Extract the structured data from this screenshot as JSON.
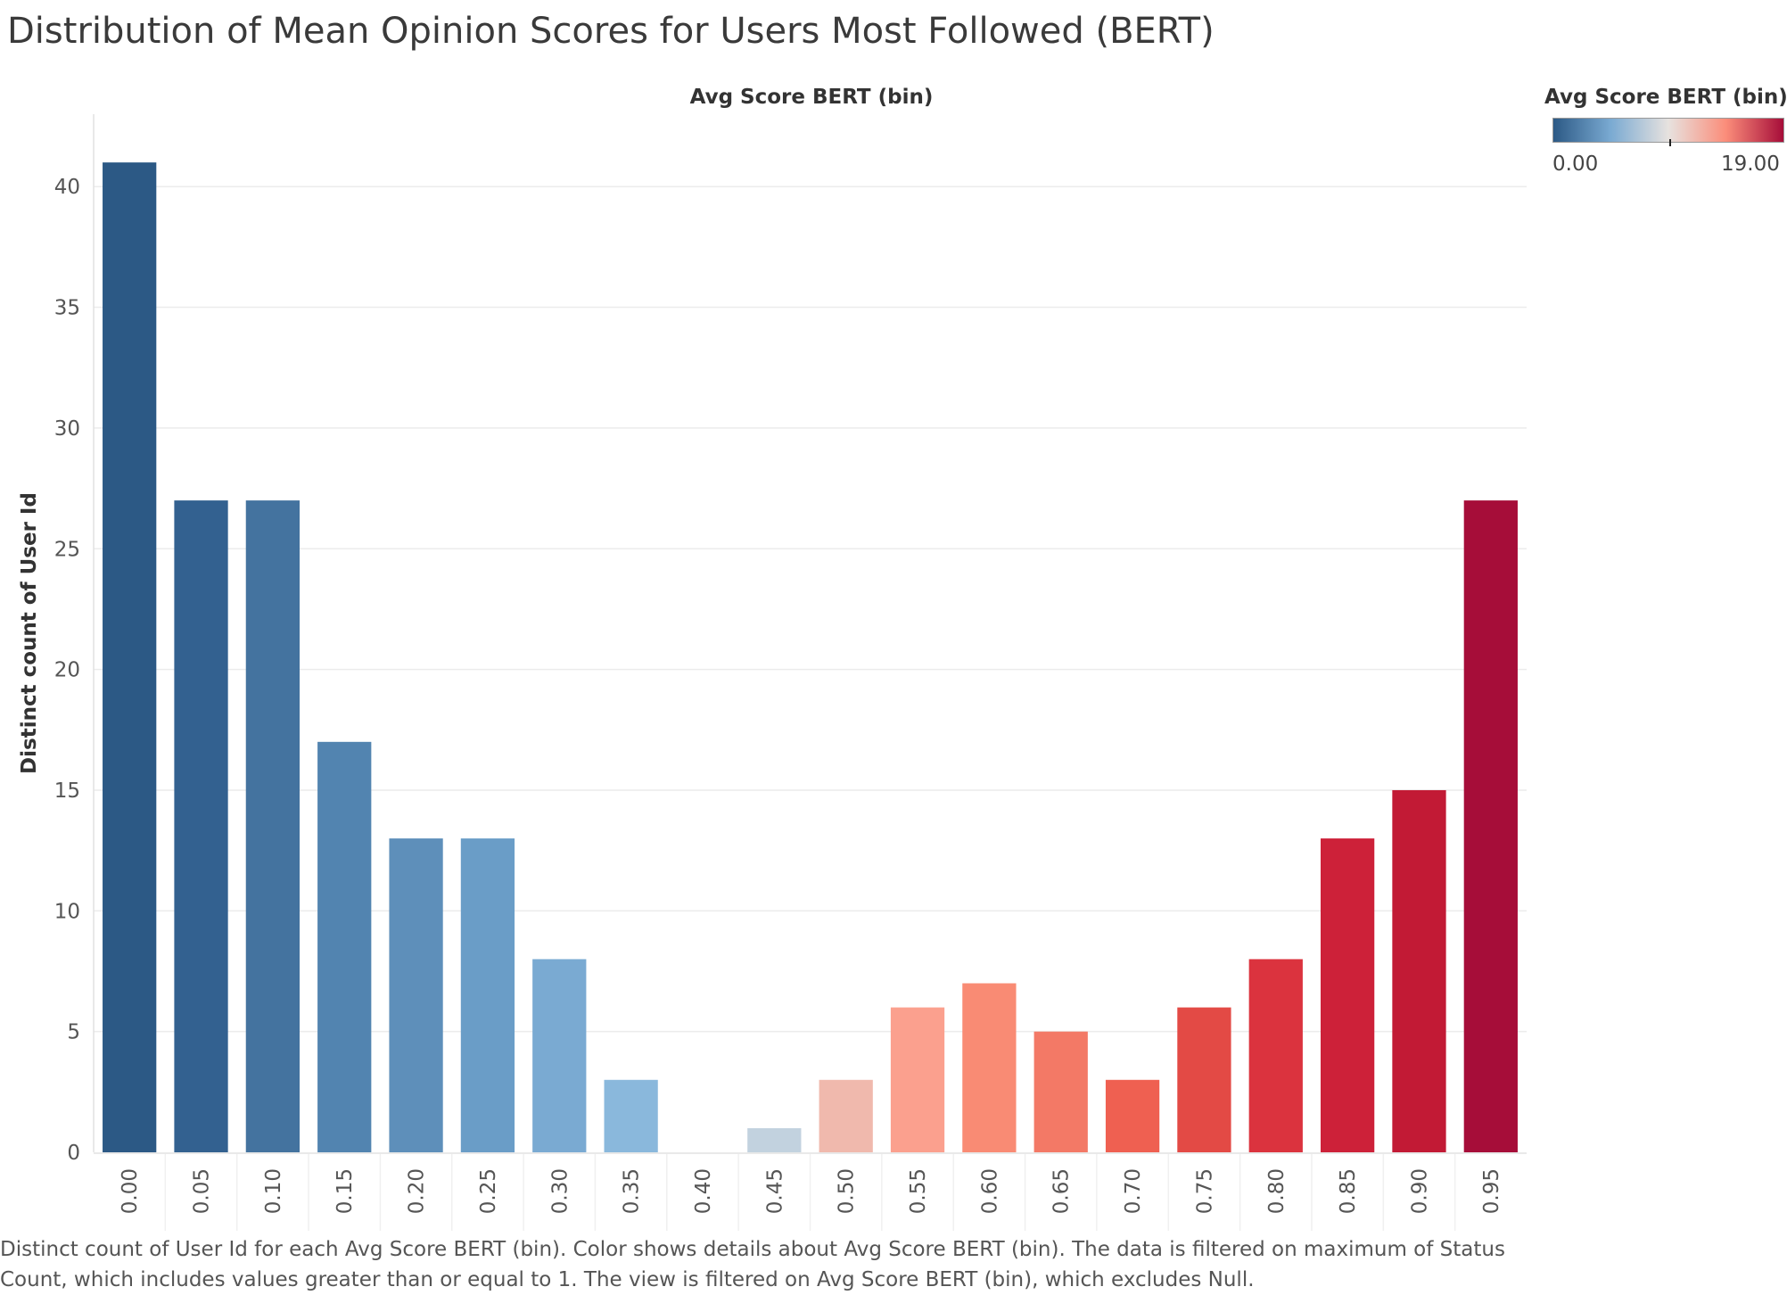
{
  "title": "Distribution of Mean Opinion Scores for Users Most Followed (BERT)",
  "caption": "Distinct count of User Id for each Avg Score BERT (bin).  Color shows details about Avg Score BERT (bin). The data is filtered on maximum of Status Count, which includes values greater than or equal to 1. The view is filtered on Avg Score BERT (bin), which excludes Null.",
  "legend": {
    "title": "Avg Score BERT (bin)",
    "min_label": "0.00",
    "max_label": "19.00",
    "colors": [
      "#2c5985",
      "#7aaad2",
      "#e7e2df",
      "#fb8d7a",
      "#a60d39"
    ]
  },
  "chart_data": {
    "type": "bar",
    "title": "Distribution of Mean Opinion Scores for Users Most Followed (BERT)",
    "xlabel": "Avg Score BERT (bin)",
    "ylabel": "Distinct count of User Id",
    "ylim": [
      0,
      43
    ],
    "yticks": [
      0,
      5,
      10,
      15,
      20,
      25,
      30,
      35,
      40
    ],
    "grid": true,
    "categories": [
      "0.00",
      "0.05",
      "0.10",
      "0.15",
      "0.20",
      "0.25",
      "0.30",
      "0.35",
      "0.40",
      "0.45",
      "0.50",
      "0.55",
      "0.60",
      "0.65",
      "0.70",
      "0.75",
      "0.80",
      "0.85",
      "0.90",
      "0.95"
    ],
    "values": [
      41,
      27,
      27,
      17,
      13,
      13,
      8,
      3,
      0,
      1,
      3,
      6,
      7,
      5,
      3,
      6,
      8,
      13,
      15,
      27
    ],
    "colors": [
      "#2c5985",
      "#336190",
      "#44739f",
      "#5284b0",
      "#5e8fba",
      "#6a9dc7",
      "#7aaad2",
      "#8ab8dc",
      "#ffffff",
      "#c2d2df",
      "#f0b9ad",
      "#fba08e",
      "#f98b74",
      "#f37966",
      "#ef6051",
      "#e34a45",
      "#db333e",
      "#cd2139",
      "#c21a35",
      "#a60d39"
    ]
  }
}
